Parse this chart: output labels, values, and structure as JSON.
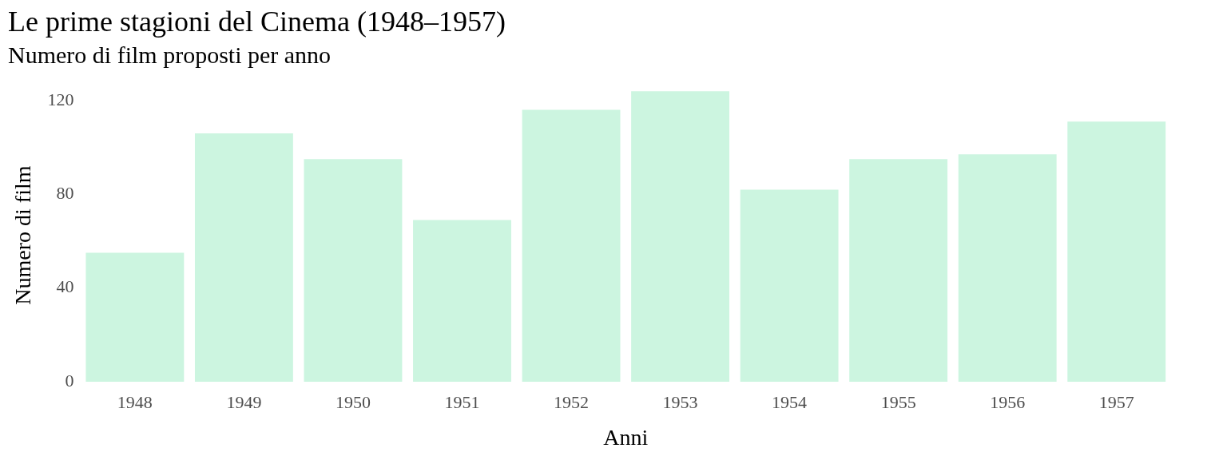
{
  "chart_data": {
    "type": "bar",
    "title": "Le prime stagioni del Cinema (1948–1957)",
    "subtitle": "Numero di film proposti per anno",
    "xlabel": "Anni",
    "ylabel": "Numero di film",
    "categories": [
      "1948",
      "1949",
      "1950",
      "1951",
      "1952",
      "1953",
      "1954",
      "1955",
      "1956",
      "1957"
    ],
    "values": [
      55,
      106,
      95,
      69,
      116,
      124,
      82,
      95,
      97,
      111
    ],
    "color": "#ccf5e0",
    "ylim": [
      0,
      125
    ],
    "yticks": [
      0,
      40,
      80,
      120
    ],
    "grid": false,
    "legend": false
  }
}
